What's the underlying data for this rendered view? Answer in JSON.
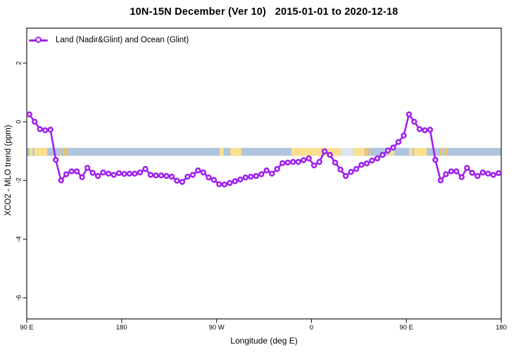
{
  "title": "10N-15N December (Ver 10)   2015-01-01 to 2020-12-18",
  "legend": {
    "label": "Land (Nadir&Glint) and Ocean (Glint)"
  },
  "axes": {
    "x_label": "Longitude (deg E)",
    "y_label": "XCO2 - MLO trend (ppm)",
    "x_tick_labels": [
      "90 E",
      "180",
      "90 W",
      "0",
      "90 E",
      "180"
    ],
    "y_tick_labels": [
      "2",
      "0",
      "-2",
      "-4",
      "-6"
    ]
  },
  "colors": {
    "series_purple": "#a020f0",
    "ocean_band_blue": "#b0c4de",
    "land_yellow": "#fadf8e",
    "land_speckle_orange": "#f2c468",
    "pale_gap_blue": "#dce6f2",
    "frame": "#2b2b2b"
  },
  "chart_data": {
    "type": "line",
    "title": "10N-15N December (Ver 10)   2015-01-01 to 2020-12-18",
    "xlabel": "Longitude (deg E)",
    "ylabel": "XCO2 - MLO trend (ppm)",
    "legend_position": "top-left-inside",
    "grid": false,
    "x_axis": {
      "display_range": [
        90,
        540
      ],
      "tick_positions": [
        90,
        180,
        270,
        360,
        450,
        540
      ],
      "tick_labels": [
        "90 E",
        "180",
        "90 W",
        "0",
        "90 E",
        "180"
      ],
      "note": "longitude axis wraps around the globe; segment 90E-180 is repeated at the right end"
    },
    "y_axis": {
      "range": [
        -6.72,
        3.19
      ],
      "tick_positions": [
        2,
        0,
        -2,
        -4,
        -6
      ],
      "tick_labels": [
        "2",
        "0",
        "-2",
        "-4",
        "-6"
      ]
    },
    "series": [
      {
        "name": "Land (Nadir&Glint) and Ocean (Glint)",
        "color": "#a020f0",
        "marker": "open-circle",
        "lon_start": 92.5,
        "lon_step": 5,
        "values": [
          0.25,
          0.0,
          -0.25,
          -0.29,
          -0.27,
          -1.3,
          -2.0,
          -1.79,
          -1.69,
          -1.69,
          -1.89,
          -1.57,
          -1.74,
          -1.85,
          -1.73,
          -1.77,
          -1.81,
          -1.75,
          -1.78,
          -1.77,
          -1.77,
          -1.73,
          -1.61,
          -1.81,
          -1.83,
          -1.83,
          -1.85,
          -1.87,
          -2.01,
          -2.05,
          -1.87,
          -1.81,
          -1.66,
          -1.73,
          -1.9,
          -1.98,
          -2.13,
          -2.14,
          -2.09,
          -2.03,
          -1.97,
          -1.9,
          -1.87,
          -1.85,
          -1.79,
          -1.66,
          -1.77,
          -1.61,
          -1.41,
          -1.39,
          -1.37,
          -1.37,
          -1.31,
          -1.25,
          -1.49,
          -1.37,
          -1.01,
          -1.13,
          -1.39,
          -1.63,
          -1.85,
          -1.71,
          -1.61,
          -1.47,
          -1.42,
          -1.32,
          -1.25,
          -1.13,
          -0.98,
          -0.88,
          -0.69,
          -0.47,
          0.25,
          0.0,
          -0.25,
          -0.29,
          -0.27,
          -1.3,
          -2.0,
          -1.79,
          -1.69,
          -1.69,
          -1.89,
          -1.57,
          -1.74,
          -1.85,
          -1.73,
          -1.77,
          -1.81,
          -1.75
        ]
      }
    ],
    "ocean_band": {
      "v_top": -0.89,
      "v_bottom": -1.16,
      "color": "#b0c4de",
      "note": "horizontal strip map of the 10N-15N latitude band: blue = ocean, yellow = land"
    },
    "land_patches": [
      {
        "from": 92.7,
        "to": 95.7,
        "c": "#fadf8e"
      },
      {
        "from": 97.3,
        "to": 109.4,
        "c": "#fadf8e"
      },
      {
        "from": 122.0,
        "to": 123.4,
        "c": "#f2c468"
      },
      {
        "from": 124.7,
        "to": 126.1,
        "c": "#f2c468"
      },
      {
        "from": 127.4,
        "to": 128.7,
        "c": "#f2c468"
      },
      {
        "from": 272.9,
        "to": 276.9,
        "c": "#fadf8e"
      },
      {
        "from": 282.9,
        "to": 293.6,
        "c": "#fadf8e"
      },
      {
        "from": 341.0,
        "to": 387.8,
        "c": "#fadf8e"
      },
      {
        "from": 387.8,
        "to": 399.8,
        "c": "#dce6f2"
      },
      {
        "from": 399.8,
        "to": 410.5,
        "c": "#fadf8e"
      },
      {
        "from": 411.8,
        "to": 413.8,
        "c": "#f2c468"
      },
      {
        "from": 414.8,
        "to": 416.1,
        "c": "#f2c468"
      },
      {
        "from": 433.2,
        "to": 438.5,
        "c": "#fadf8e"
      },
      {
        "from": 452.7,
        "to": 455.7,
        "c": "#fadf8e"
      },
      {
        "from": 457.3,
        "to": 469.4,
        "c": "#fadf8e"
      },
      {
        "from": 482.0,
        "to": 483.4,
        "c": "#f2c468"
      },
      {
        "from": 484.7,
        "to": 486.1,
        "c": "#f2c468"
      },
      {
        "from": 487.4,
        "to": 488.7,
        "c": "#f2c468"
      }
    ]
  }
}
